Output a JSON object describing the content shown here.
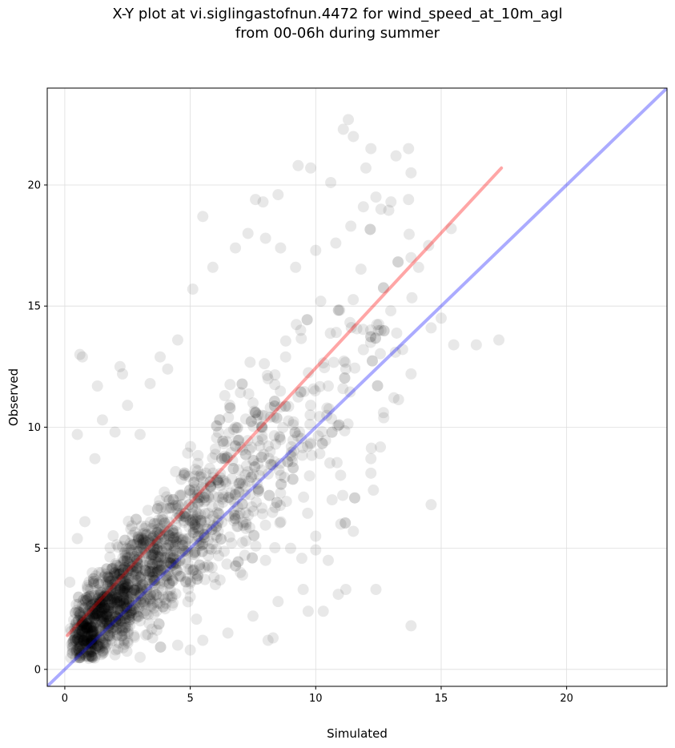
{
  "chart_data": {
    "type": "scatter",
    "title_lines": [
      "X-Y plot at vi.siglingastofnun.4472 for wind_speed_at_10m_agl",
      "from 00-06h during summer"
    ],
    "xlabel": "Simulated",
    "ylabel": "Observed",
    "xlim": [
      -0.7,
      24
    ],
    "ylim": [
      -0.7,
      24
    ],
    "xticks": [
      0,
      5,
      10,
      15,
      20
    ],
    "yticks": [
      0,
      5,
      10,
      15,
      20
    ],
    "grid": true,
    "point_color": "#000000",
    "point_alpha": 0.09,
    "points_sample": [
      [
        0.6,
        13.0
      ],
      [
        0.7,
        12.9
      ],
      [
        1.3,
        11.7
      ],
      [
        2.2,
        12.5
      ],
      [
        2.3,
        12.2
      ],
      [
        3.8,
        12.9
      ],
      [
        5.5,
        18.7
      ],
      [
        11.3,
        22.7
      ],
      [
        11.1,
        22.3
      ],
      [
        11.5,
        22.0
      ],
      [
        12.2,
        21.5
      ],
      [
        13.7,
        21.5
      ],
      [
        9.3,
        20.8
      ],
      [
        9.8,
        20.7
      ],
      [
        10.6,
        20.1
      ],
      [
        12.0,
        20.7
      ],
      [
        13.2,
        21.2
      ],
      [
        13.8,
        20.5
      ],
      [
        7.6,
        19.4
      ],
      [
        7.9,
        19.3
      ],
      [
        8.5,
        19.6
      ],
      [
        12.4,
        19.5
      ],
      [
        13.0,
        19.3
      ],
      [
        13.7,
        19.4
      ],
      [
        14.5,
        17.5
      ],
      [
        13.8,
        17.0
      ],
      [
        14.1,
        16.6
      ],
      [
        15.4,
        18.2
      ],
      [
        15.5,
        13.4
      ],
      [
        16.4,
        13.4
      ],
      [
        17.3,
        13.6
      ],
      [
        14.6,
        14.1
      ],
      [
        15.0,
        14.5
      ],
      [
        13.8,
        12.2
      ],
      [
        14.6,
        6.8
      ],
      [
        13.8,
        1.8
      ],
      [
        12.4,
        3.3
      ],
      [
        12.7,
        10.6
      ],
      [
        12.2,
        8.7
      ],
      [
        12.2,
        8.1
      ],
      [
        12.3,
        7.4
      ],
      [
        11.2,
        3.3
      ],
      [
        10.9,
        3.1
      ],
      [
        10.3,
        2.4
      ],
      [
        9.7,
        2.4
      ],
      [
        8.3,
        1.3
      ],
      [
        8.1,
        1.2
      ],
      [
        5.0,
        0.8
      ],
      [
        3.0,
        0.5
      ],
      [
        2.0,
        0.6
      ],
      [
        1.0,
        0.8
      ],
      [
        0.3,
        0.9
      ],
      [
        0.2,
        3.6
      ],
      [
        0.5,
        5.4
      ],
      [
        0.5,
        9.7
      ],
      [
        0.8,
        6.1
      ],
      [
        1.2,
        8.7
      ],
      [
        1.5,
        10.3
      ],
      [
        2.0,
        9.8
      ],
      [
        2.5,
        10.9
      ],
      [
        3.0,
        9.7
      ],
      [
        3.4,
        11.8
      ],
      [
        4.1,
        12.4
      ],
      [
        4.5,
        13.6
      ],
      [
        5.1,
        15.7
      ],
      [
        5.9,
        16.6
      ],
      [
        6.8,
        17.4
      ],
      [
        7.3,
        18.0
      ],
      [
        8.0,
        17.8
      ],
      [
        8.6,
        17.4
      ],
      [
        9.2,
        16.6
      ],
      [
        10.0,
        17.3
      ],
      [
        10.8,
        17.6
      ],
      [
        11.4,
        18.3
      ],
      [
        11.9,
        19.1
      ],
      [
        12.6,
        19.0
      ],
      [
        10.2,
        15.2
      ],
      [
        9.4,
        14.0
      ],
      [
        8.8,
        12.9
      ],
      [
        8.1,
        12.0
      ],
      [
        7.5,
        11.0
      ],
      [
        6.8,
        10.0
      ],
      [
        6.0,
        9.1
      ],
      [
        5.3,
        8.2
      ],
      [
        4.6,
        7.2
      ],
      [
        3.9,
        6.3
      ],
      [
        3.2,
        5.3
      ],
      [
        2.5,
        4.4
      ],
      [
        1.9,
        3.5
      ],
      [
        1.2,
        2.6
      ],
      [
        0.7,
        1.9
      ],
      [
        1.5,
        3.0
      ],
      [
        2.2,
        3.3
      ],
      [
        2.9,
        3.0
      ],
      [
        3.5,
        3.8
      ],
      [
        4.2,
        4.6
      ],
      [
        4.9,
        5.4
      ],
      [
        5.6,
        6.1
      ],
      [
        6.3,
        6.9
      ],
      [
        7.0,
        7.7
      ],
      [
        7.7,
        8.5
      ],
      [
        8.4,
        9.3
      ],
      [
        9.1,
        10.1
      ],
      [
        9.8,
        10.9
      ],
      [
        10.5,
        11.7
      ],
      [
        11.2,
        12.4
      ],
      [
        11.9,
        13.2
      ],
      [
        12.6,
        14.0
      ],
      [
        3.0,
        2.0
      ],
      [
        4.0,
        2.5
      ],
      [
        5.0,
        3.0
      ],
      [
        6.0,
        3.5
      ],
      [
        7.0,
        4.0
      ],
      [
        8.0,
        4.5
      ],
      [
        9.0,
        5.0
      ],
      [
        10.0,
        5.5
      ],
      [
        11.0,
        6.0
      ],
      [
        11.5,
        5.7
      ],
      [
        10.5,
        4.5
      ],
      [
        9.5,
        3.3
      ],
      [
        8.5,
        2.8
      ],
      [
        7.5,
        2.2
      ],
      [
        6.5,
        1.5
      ],
      [
        5.5,
        1.2
      ],
      [
        4.5,
        1.0
      ],
      [
        3.5,
        1.3
      ]
    ],
    "fit_line": {
      "color": "#ff0000",
      "x": [
        0.1,
        17.4
      ],
      "y": [
        1.4,
        20.7
      ]
    },
    "identity_line": {
      "color": "#0000ff",
      "x": [
        -0.7,
        24
      ],
      "y": [
        -0.7,
        24
      ]
    }
  }
}
